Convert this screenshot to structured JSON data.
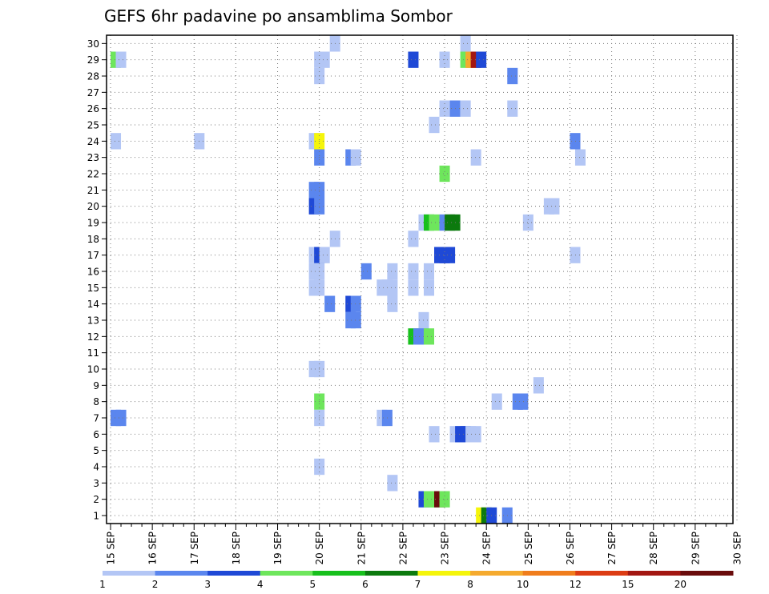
{
  "chart_data": {
    "type": "heatmap",
    "title": "GEFS 6hr padavine po ansamblima Sombor",
    "xlabel": "",
    "ylabel": "",
    "grid": true,
    "x_tick_labels": [
      "15 SEP",
      "16 SEP",
      "17 SEP",
      "18 SEP",
      "19 SEP",
      "20 SEP",
      "21 SEP",
      "22 SEP",
      "23 SEP",
      "24 SEP",
      "25 SEP",
      "26 SEP",
      "27 SEP",
      "28 SEP",
      "29 SEP",
      "30 SEP"
    ],
    "y_tick_labels": [
      "1",
      "2",
      "3",
      "4",
      "5",
      "6",
      "7",
      "8",
      "9",
      "10",
      "11",
      "12",
      "13",
      "14",
      "15",
      "16",
      "17",
      "18",
      "19",
      "20",
      "21",
      "22",
      "23",
      "24",
      "25",
      "26",
      "27",
      "28",
      "29",
      "30"
    ],
    "x_units": "6-hour step index from 15 SEP 00Z (0..60)",
    "colorbar": {
      "labels": [
        "1",
        "2",
        "3",
        "4",
        "5",
        "6",
        "7",
        "8",
        "10",
        "12",
        "15",
        "20"
      ],
      "colors": [
        "#b3c6f5",
        "#5b86ee",
        "#1f49d6",
        "#6ee65c",
        "#17c01c",
        "#0c7a0e",
        "#f5f50a",
        "#f5aa2e",
        "#f07d1c",
        "#dc3c14",
        "#a31712",
        "#6a0c0c"
      ]
    },
    "cells": [
      {
        "member": 29,
        "step": 0.5,
        "class": 4
      },
      {
        "member": 29,
        "step": 1,
        "class": 1
      },
      {
        "member": 24,
        "step": 0.5,
        "class": 1
      },
      {
        "member": 7,
        "step": 0.5,
        "class": 2
      },
      {
        "member": 7,
        "step": 1,
        "class": 2
      },
      {
        "member": 24,
        "step": 8.5,
        "class": 1
      },
      {
        "member": 30,
        "step": 21.5,
        "class": 1
      },
      {
        "member": 29,
        "step": 20,
        "class": 1
      },
      {
        "member": 29,
        "step": 20.5,
        "class": 1
      },
      {
        "member": 28,
        "step": 20,
        "class": 1
      },
      {
        "member": 24,
        "step": 19.5,
        "class": 1
      },
      {
        "member": 24,
        "step": 20,
        "class": 7
      },
      {
        "member": 23,
        "step": 20,
        "class": 2
      },
      {
        "member": 21,
        "step": 19.5,
        "class": 2
      },
      {
        "member": 21,
        "step": 20,
        "class": 2
      },
      {
        "member": 20,
        "step": 19.5,
        "class": 3
      },
      {
        "member": 20,
        "step": 20,
        "class": 2
      },
      {
        "member": 18,
        "step": 21.5,
        "class": 1
      },
      {
        "member": 17,
        "step": 19.5,
        "class": 1
      },
      {
        "member": 17,
        "step": 20,
        "class": 3
      },
      {
        "member": 17,
        "step": 20.5,
        "class": 1
      },
      {
        "member": 16,
        "step": 19.5,
        "class": 1
      },
      {
        "member": 16,
        "step": 20,
        "class": 1
      },
      {
        "member": 15,
        "step": 19.5,
        "class": 1
      },
      {
        "member": 15,
        "step": 20,
        "class": 1
      },
      {
        "member": 14,
        "step": 21,
        "class": 2
      },
      {
        "member": 10,
        "step": 19.5,
        "class": 1
      },
      {
        "member": 10,
        "step": 20,
        "class": 1
      },
      {
        "member": 8,
        "step": 20,
        "class": 4
      },
      {
        "member": 7,
        "step": 20,
        "class": 1
      },
      {
        "member": 4,
        "step": 20,
        "class": 1
      },
      {
        "member": 23,
        "step": 23,
        "class": 2
      },
      {
        "member": 23,
        "step": 23.5,
        "class": 1
      },
      {
        "member": 16,
        "step": 24.5,
        "class": 2
      },
      {
        "member": 15,
        "step": 26,
        "class": 1
      },
      {
        "member": 15,
        "step": 26.5,
        "class": 1
      },
      {
        "member": 15,
        "step": 27,
        "class": 1
      },
      {
        "member": 16,
        "step": 27,
        "class": 1
      },
      {
        "member": 14,
        "step": 27,
        "class": 1
      },
      {
        "member": 14,
        "step": 23,
        "class": 3
      },
      {
        "member": 14,
        "step": 23.5,
        "class": 2
      },
      {
        "member": 13,
        "step": 23,
        "class": 2
      },
      {
        "member": 13,
        "step": 23.5,
        "class": 2
      },
      {
        "member": 7,
        "step": 26,
        "class": 1
      },
      {
        "member": 7,
        "step": 26.5,
        "class": 2
      },
      {
        "member": 3,
        "step": 27,
        "class": 1
      },
      {
        "member": 29,
        "step": 29,
        "class": 3
      },
      {
        "member": 18,
        "step": 29,
        "class": 1
      },
      {
        "member": 16,
        "step": 29,
        "class": 1
      },
      {
        "member": 15,
        "step": 29,
        "class": 1
      },
      {
        "member": 13,
        "step": 30,
        "class": 1
      },
      {
        "member": 12,
        "step": 29,
        "class": 5
      },
      {
        "member": 12,
        "step": 29.5,
        "class": 2
      },
      {
        "member": 12,
        "step": 30,
        "class": 2
      },
      {
        "member": 12,
        "step": 30.5,
        "class": 4
      },
      {
        "member": 15,
        "step": 30.5,
        "class": 1
      },
      {
        "member": 16,
        "step": 30.5,
        "class": 1
      },
      {
        "member": 19,
        "step": 30,
        "class": 1
      },
      {
        "member": 19,
        "step": 30.5,
        "class": 5
      },
      {
        "member": 19,
        "step": 31,
        "class": 4
      },
      {
        "member": 25,
        "step": 31,
        "class": 1
      },
      {
        "member": 6,
        "step": 31,
        "class": 1
      },
      {
        "member": 2,
        "step": 30,
        "class": 3
      },
      {
        "member": 2,
        "step": 30.5,
        "class": 4
      },
      {
        "member": 2,
        "step": 31,
        "class": 4
      },
      {
        "member": 2,
        "step": 31.5,
        "class": 12
      },
      {
        "member": 2,
        "step": 32,
        "class": 4
      },
      {
        "member": 29,
        "step": 32,
        "class": 1
      },
      {
        "member": 22,
        "step": 32,
        "class": 4
      },
      {
        "member": 17,
        "step": 31.5,
        "class": 3
      },
      {
        "member": 17,
        "step": 32,
        "class": 3
      },
      {
        "member": 17,
        "step": 32.5,
        "class": 3
      },
      {
        "member": 19,
        "step": 32,
        "class": 2
      },
      {
        "member": 19,
        "step": 32.5,
        "class": 6
      },
      {
        "member": 19,
        "step": 33,
        "class": 6
      },
      {
        "member": 26,
        "step": 32,
        "class": 1
      },
      {
        "member": 26,
        "step": 33,
        "class": 2
      },
      {
        "member": 6,
        "step": 33,
        "class": 1
      },
      {
        "member": 6,
        "step": 33.5,
        "class": 3
      },
      {
        "member": 6,
        "step": 34,
        "class": 3
      },
      {
        "member": 6,
        "step": 34.5,
        "class": 1
      },
      {
        "member": 6,
        "step": 35,
        "class": 1
      },
      {
        "member": 30,
        "step": 34,
        "class": 1
      },
      {
        "member": 29,
        "step": 34,
        "class": 4
      },
      {
        "member": 29,
        "step": 34.5,
        "class": 8
      },
      {
        "member": 29,
        "step": 35,
        "class": 11
      },
      {
        "member": 29,
        "step": 35.5,
        "class": 3
      },
      {
        "member": 26,
        "step": 34,
        "class": 1
      },
      {
        "member": 23,
        "step": 35,
        "class": 1
      },
      {
        "member": 1,
        "step": 35.5,
        "class": 7
      },
      {
        "member": 1,
        "step": 36,
        "class": 6
      },
      {
        "member": 1,
        "step": 36.5,
        "class": 3
      },
      {
        "member": 8,
        "step": 37,
        "class": 1
      },
      {
        "member": 1,
        "step": 38,
        "class": 2
      },
      {
        "member": 28,
        "step": 38.5,
        "class": 2
      },
      {
        "member": 26,
        "step": 38.5,
        "class": 1
      },
      {
        "member": 8,
        "step": 39,
        "class": 2
      },
      {
        "member": 8,
        "step": 39.5,
        "class": 2
      },
      {
        "member": 19,
        "step": 40,
        "class": 1
      },
      {
        "member": 9,
        "step": 41,
        "class": 1
      },
      {
        "member": 20,
        "step": 42,
        "class": 1
      },
      {
        "member": 20,
        "step": 42.5,
        "class": 1
      },
      {
        "member": 24,
        "step": 44.5,
        "class": 2
      },
      {
        "member": 17,
        "step": 44.5,
        "class": 1
      },
      {
        "member": 23,
        "step": 45,
        "class": 1
      }
    ]
  }
}
